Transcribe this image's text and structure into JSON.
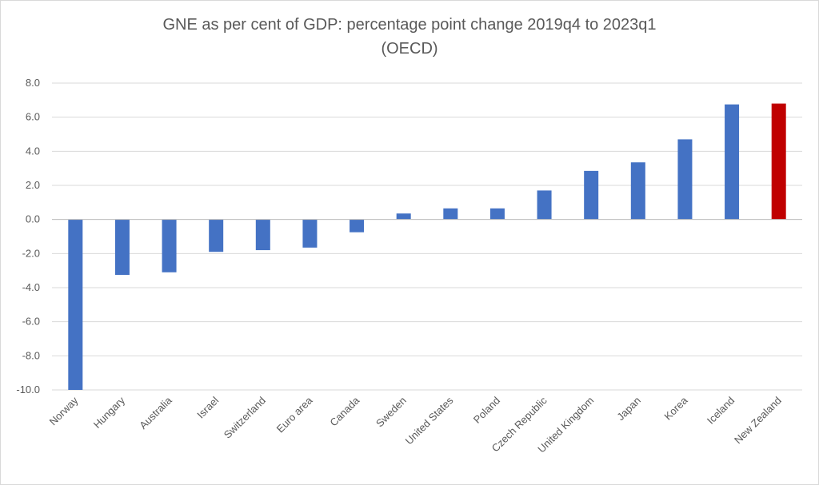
{
  "chart_data": {
    "type": "bar",
    "title": "GNE as per cent of GDP: percentage point change 2019q4 to 2023q1",
    "subtitle": "(OECD)",
    "categories": [
      "Norway",
      "Hungary",
      "Australia",
      "Israel",
      "Switzerland",
      "Euro area",
      "Canada",
      "Sweden",
      "United States",
      "Poland",
      "Czech Republic",
      "United Kingdom",
      "Japan",
      "Korea",
      "Iceland",
      "New Zealand"
    ],
    "values": [
      -10.0,
      -3.25,
      -3.1,
      -1.9,
      -1.8,
      -1.65,
      -0.75,
      0.35,
      0.65,
      0.65,
      1.7,
      2.85,
      3.35,
      4.7,
      6.75,
      6.8
    ],
    "ylim": [
      -10,
      8
    ],
    "yticks": [
      "8.0",
      "6.0",
      "4.0",
      "2.0",
      "0.0",
      "-2.0",
      "-4.0",
      "-6.0",
      "-8.0",
      "-10.0"
    ],
    "grid": true,
    "legend": "none",
    "colors": {
      "default": "#4472c4",
      "highlight": "#c00000",
      "highlight_category": "New Zealand"
    }
  }
}
